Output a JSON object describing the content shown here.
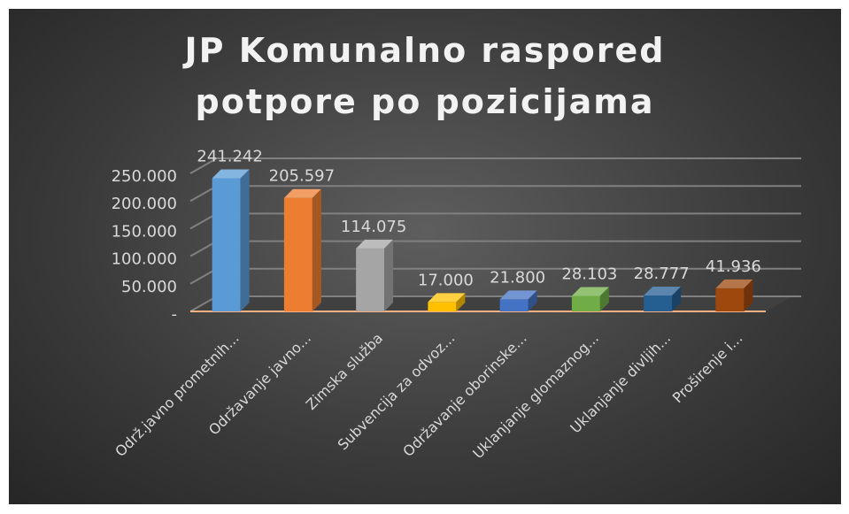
{
  "chart_data": {
    "type": "bar3d",
    "title": "JP Komunalno raspored potpore po pozicijama",
    "categories": [
      "Održ.javno prometnih...",
      "Održavanje javno...",
      "Zimska služba",
      "Subvencija za odvoz...",
      "Održavanje oborinske...",
      "Uklanjanje glomaznog...",
      "Uklanjanje divljih...",
      "Proširenje i..."
    ],
    "values": [
      241242,
      205597,
      114075,
      17000,
      21800,
      28103,
      28777,
      41936
    ],
    "value_labels": [
      "241.242",
      "205.597",
      "114.075",
      "17.000",
      "21.800",
      "28.103",
      "28.777",
      "41.936"
    ],
    "colors": [
      "#5b9bd5",
      "#ed7d31",
      "#a5a5a5",
      "#ffc000",
      "#4472c4",
      "#70ad47",
      "#255e91",
      "#9e480e"
    ],
    "ylim": [
      0,
      250000
    ],
    "yticks": [
      {
        "value": 0,
        "label": "-"
      },
      {
        "value": 50000,
        "label": "50.000"
      },
      {
        "value": 100000,
        "label": "100.000"
      },
      {
        "value": 150000,
        "label": "150.000"
      },
      {
        "value": 200000,
        "label": "200.000"
      },
      {
        "value": 250000,
        "label": "250.000"
      }
    ],
    "grid": true
  }
}
